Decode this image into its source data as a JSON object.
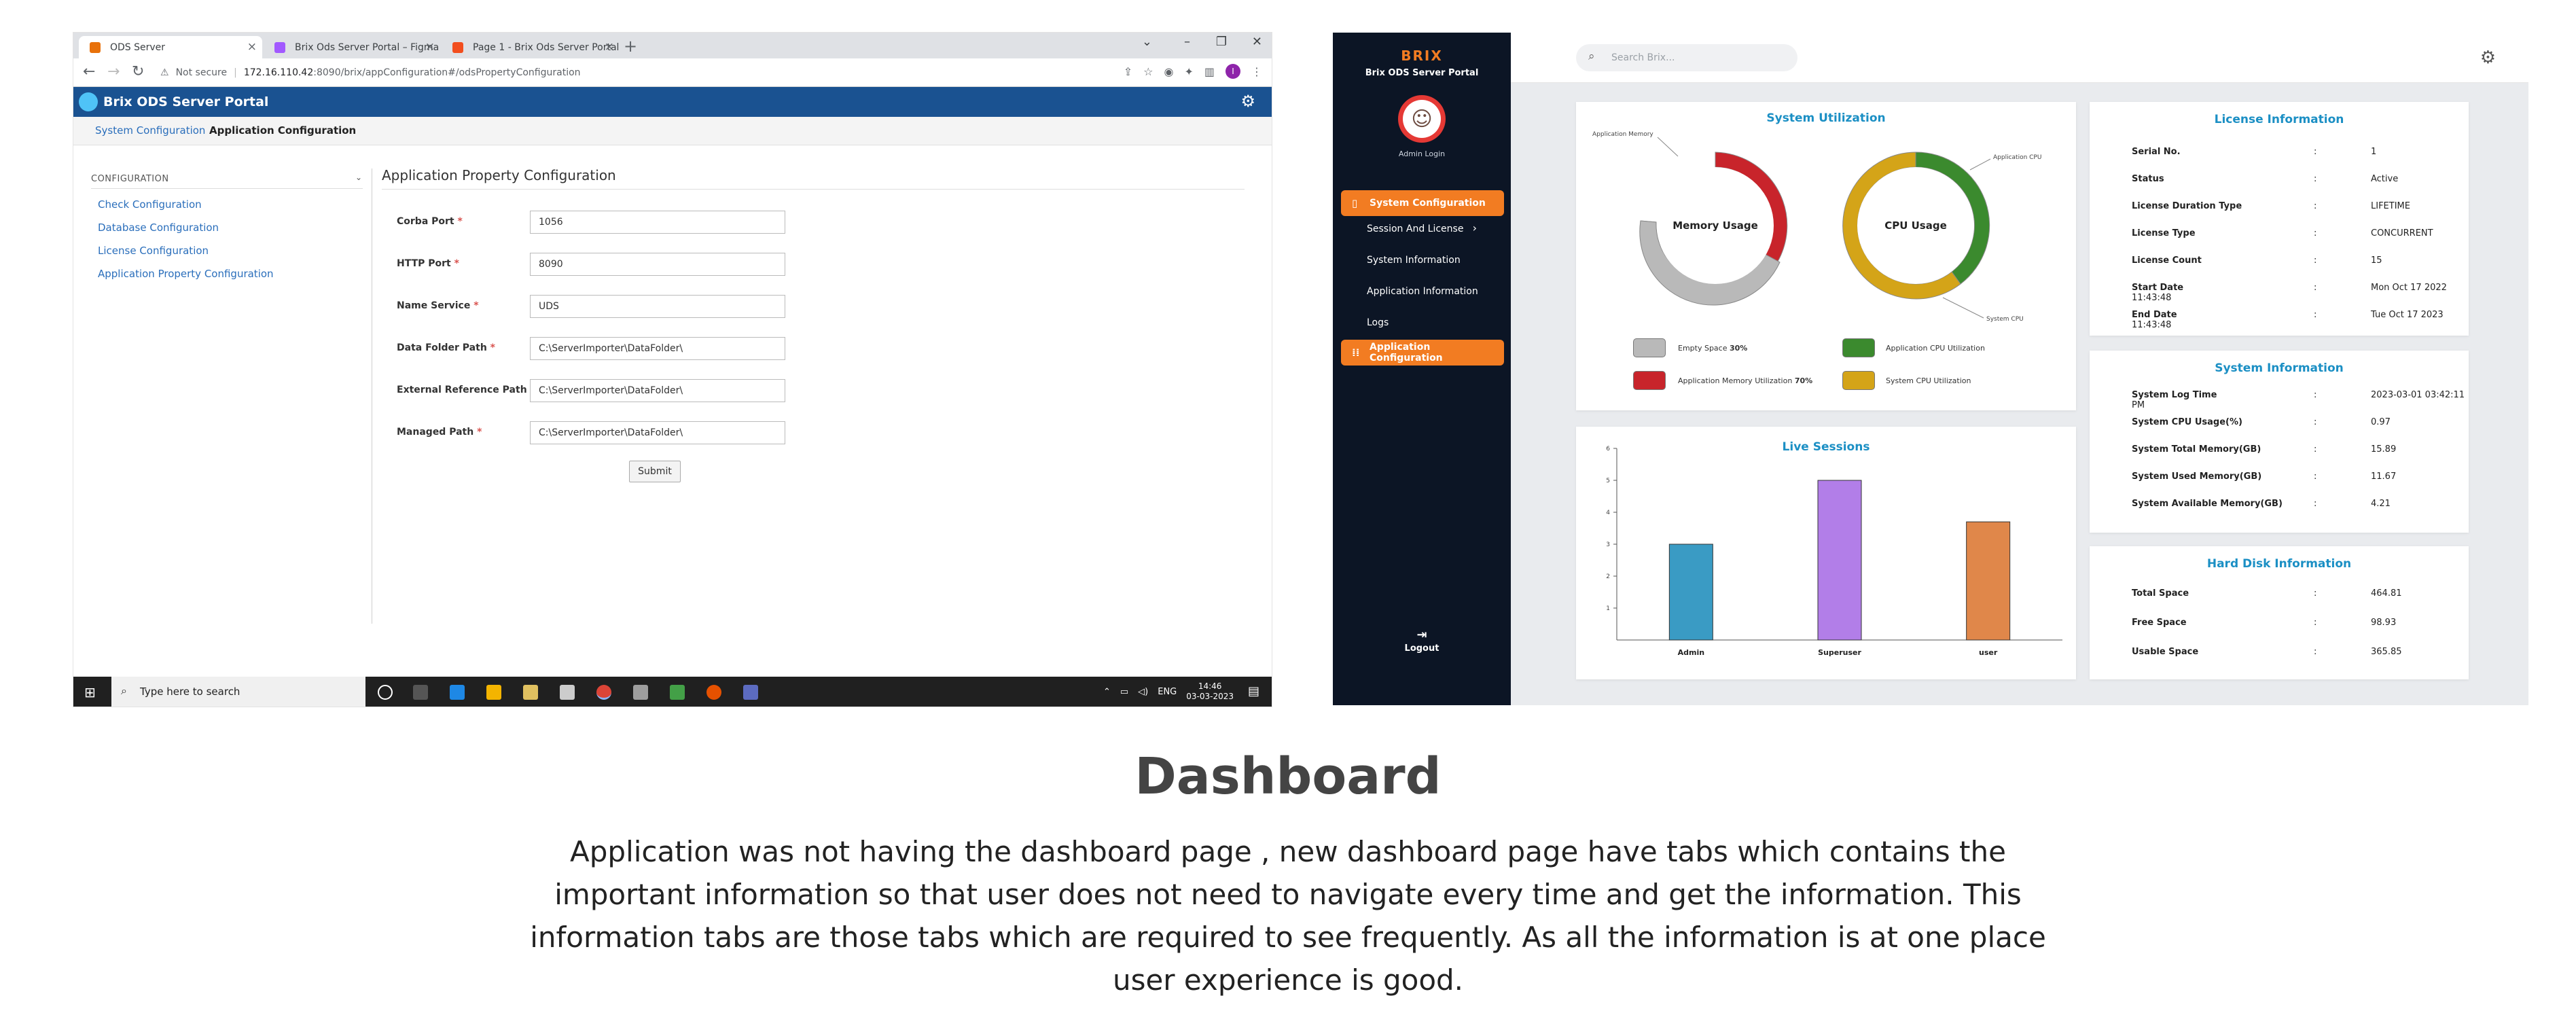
{
  "left_window": {
    "tabs": [
      {
        "label": "ODS Server",
        "active": true,
        "favicon_color": "#e8710a"
      },
      {
        "label": "Brix Ods Server Portal – Figma",
        "active": false,
        "favicon_color": "#a259ff"
      },
      {
        "label": "Page 1 - Brix Ods Server Portal",
        "active": false,
        "favicon_color": "#f24e1e"
      }
    ],
    "address": {
      "security": "Not secure",
      "host": "172.16.110.42",
      "path": ":8090/brix/appConfiguration#/odsPropertyConfiguration",
      "profile_initial": "I"
    },
    "app": {
      "title": "Brix ODS Server Portal",
      "header_color": "#1a5291"
    },
    "menu": {
      "item1": "System Configuration",
      "item2": "Application Configuration"
    },
    "sidebar": {
      "section": "CONFIGURATION",
      "links": [
        "Check Configuration",
        "Database Configuration",
        "License Configuration",
        "Application Property Configuration"
      ]
    },
    "form": {
      "title": "Application Property Configuration",
      "fields": [
        {
          "label": "Corba Port",
          "value": "1056"
        },
        {
          "label": "HTTP Port",
          "value": "8090"
        },
        {
          "label": "Name Service",
          "value": "UDS"
        },
        {
          "label": "Data Folder Path",
          "value": "C:\\ServerImporter\\DataFolder\\"
        },
        {
          "label": "External Reference Path",
          "value": "C:\\ServerImporter\\DataFolder\\"
        },
        {
          "label": "Managed Path",
          "value": "C:\\ServerImporter\\DataFolder\\"
        }
      ],
      "required_mark": "*",
      "submit_label": "Submit"
    },
    "taskbar": {
      "search_placeholder": "Type here to search",
      "language": "ENG",
      "time": "14:46",
      "date": "03-03-2023"
    }
  },
  "right_window": {
    "sidebar": {
      "logo": "BRIX",
      "portal_name": "Brix ODS Server Portal",
      "user_label": "Admin Login",
      "nav": [
        "System Configuration",
        "Session And License",
        "System Information",
        "Application Information",
        "Logs",
        "Application Configuration"
      ],
      "logout_label": "Logout",
      "accent": "#f27c22"
    },
    "search_placeholder": "Search Brix...",
    "system_utilization": {
      "title": "System Utilization",
      "memory_label": "Memory Usage",
      "cpu_label": "CPU Usage",
      "callouts": {
        "memory": "Application Memory",
        "app_cpu": "Application CPU",
        "sys_cpu": "System CPU"
      },
      "legend": [
        {
          "label": "Empty Space",
          "value": "30%",
          "color": "#b9b9b9"
        },
        {
          "label": "Application CPU Utilization",
          "value": "",
          "color": "#3b8a2e"
        },
        {
          "label": "Application Memory Utilization",
          "value": "70%",
          "color": "#c8242b"
        },
        {
          "label": "System CPU Utilization",
          "value": "",
          "color": "#d4a418"
        }
      ]
    },
    "chart_data": {
      "type": "bar",
      "title": "Live Sessions",
      "categories": [
        "Admin",
        "Superuser",
        "user"
      ],
      "values": [
        3,
        5,
        3.7
      ],
      "colors": [
        "#3a9bc4",
        "#b27ee8",
        "#e0874a"
      ],
      "ylim": [
        0,
        6
      ],
      "yticks": [
        "1",
        "2",
        "3",
        "4",
        "5",
        "6"
      ],
      "xlabel": "",
      "ylabel": ""
    },
    "license": {
      "title": "License Information",
      "rows": [
        {
          "k": "Serial No.",
          "v": "1"
        },
        {
          "k": "Status",
          "v": "Active"
        },
        {
          "k": "License Duration Type",
          "v": "LIFETIME"
        },
        {
          "k": "License Type",
          "v": "CONCURRENT"
        },
        {
          "k": "License Count",
          "v": "15"
        },
        {
          "k": "Start Date",
          "v": "Mon Oct 17 2022 11:43:48"
        },
        {
          "k": "End Date",
          "v": "Tue Oct 17 2023 11:43:48"
        }
      ]
    },
    "system_info": {
      "title": "System Information",
      "rows": [
        {
          "k": "System Log Time",
          "v": "2023-03-01 03:42:11 PM"
        },
        {
          "k": "System CPU Usage(%)",
          "v": "0.97"
        },
        {
          "k": "System Total Memory(GB)",
          "v": "15.89"
        },
        {
          "k": "System Used Memory(GB)",
          "v": "11.67"
        },
        {
          "k": "System Available Memory(GB)",
          "v": "4.21"
        }
      ]
    },
    "hard_disk": {
      "title": "Hard Disk Information",
      "rows": [
        {
          "k": "Total Space",
          "v": "464.81"
        },
        {
          "k": "Free Space",
          "v": "98.93"
        },
        {
          "k": "Usable Space",
          "v": "365.85"
        }
      ]
    },
    "separator": ":"
  },
  "caption": {
    "title": "Dashboard",
    "body": "Application was not having the dashboard page , new dashboard page have  tabs which contains the important information so that user does not need to navigate every time and get the information. This information tabs are those tabs which are required to see frequently. As all the information is at one place user experience is good."
  }
}
